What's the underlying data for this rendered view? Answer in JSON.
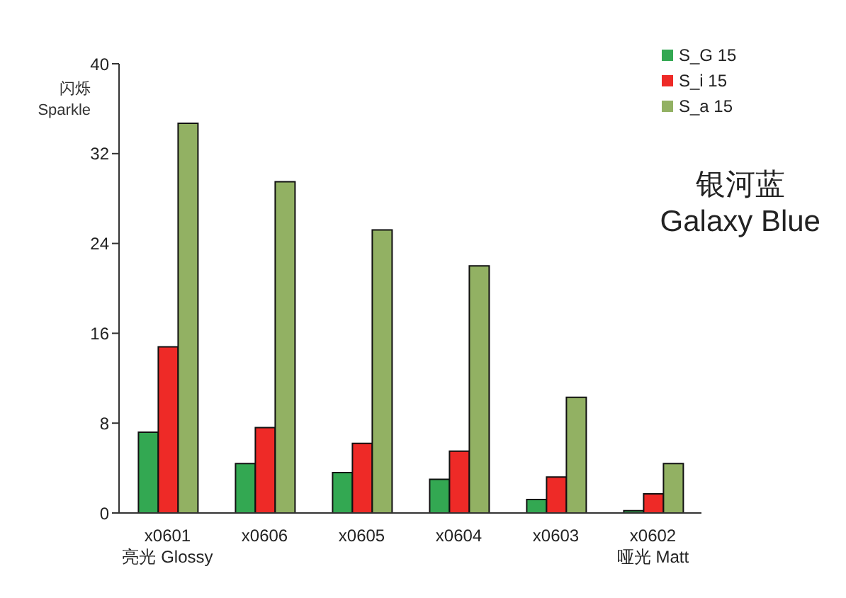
{
  "chart_data": {
    "type": "bar",
    "title": "银河蓝\nGalaxy Blue",
    "ylabel": "闪烁\nSparkle",
    "categories": [
      "x0601\n亮光 Glossy",
      "x0606",
      "x0605",
      "x0604",
      "x0603",
      "x0602\n哑光 Matt"
    ],
    "series": [
      {
        "name": "S_G 15",
        "color": "#33a852",
        "values": [
          7.2,
          4.4,
          3.6,
          3.0,
          1.2,
          0.2
        ]
      },
      {
        "name": "S_i 15",
        "color": "#ee2a27",
        "values": [
          14.8,
          7.6,
          6.2,
          5.5,
          3.2,
          1.7
        ]
      },
      {
        "name": "S_a 15",
        "color": "#92b163",
        "values": [
          34.7,
          29.5,
          25.2,
          22.0,
          10.3,
          4.4
        ]
      }
    ],
    "ylim": [
      0,
      40
    ],
    "yticks": [
      0,
      8,
      16,
      24,
      32,
      40
    ],
    "grid": false,
    "legend": "top right"
  }
}
